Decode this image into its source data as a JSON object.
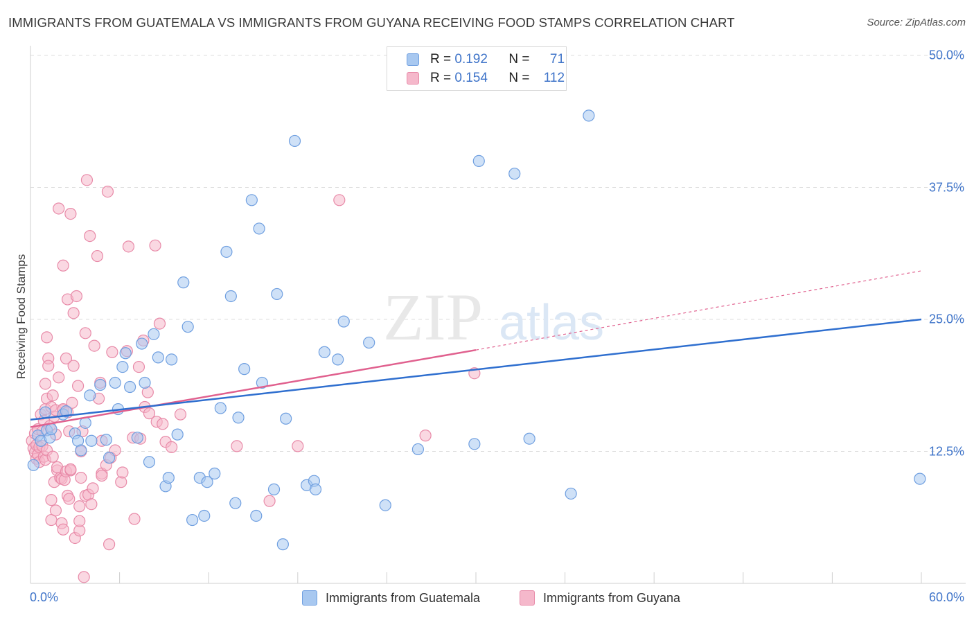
{
  "title": "IMMIGRANTS FROM GUATEMALA VS IMMIGRANTS FROM GUYANA RECEIVING FOOD STAMPS CORRELATION CHART",
  "source": "Source: ZipAtlas.com",
  "watermark": {
    "zip": "ZIP",
    "atlas": "atlas"
  },
  "legend": {
    "rows": [
      {
        "r_label": "R =",
        "r_value": "0.192",
        "n_label": "N =",
        "n_value": "71",
        "color": "#a8c8f0"
      },
      {
        "r_label": "R =",
        "r_value": "0.154",
        "n_label": "N =",
        "n_value": "112",
        "color": "#f5b8cb"
      }
    ]
  },
  "colors": {
    "guatemala_fill": "#a8c8f0",
    "guatemala_stroke": "#6f9fe0",
    "guatemala_line": "#2f6fcf",
    "guyana_fill": "#f5b8cb",
    "guyana_stroke": "#e88aa8",
    "guyana_line": "#e0608e",
    "tick_text": "#3f74c9",
    "grid": "#dcdcdc"
  },
  "chart_data": {
    "type": "scatter",
    "title": "IMMIGRANTS FROM GUATEMALA VS IMMIGRANTS FROM GUYANA RECEIVING FOOD STAMPS CORRELATION CHART",
    "xlabel": "",
    "ylabel": "Receiving Food Stamps",
    "xlim": [
      0,
      60
    ],
    "ylim": [
      0,
      50
    ],
    "x_tick_labels": [
      "0.0%",
      "60.0%"
    ],
    "y_ticks": [
      12.5,
      25.0,
      37.5,
      50.0
    ],
    "y_tick_labels": [
      "12.5%",
      "25.0%",
      "37.5%",
      "50.0%"
    ],
    "grid": "horizontal dashed",
    "legend_position": "top-center",
    "series": [
      {
        "name": "Immigrants from Guatemala",
        "r": 0.192,
        "n": 71,
        "trend": {
          "x": [
            0,
            60
          ],
          "y": [
            15.5,
            25.0
          ],
          "style": "solid"
        },
        "points": [
          [
            0.2,
            11.2
          ],
          [
            0.5,
            14.0
          ],
          [
            0.7,
            13.5
          ],
          [
            1.0,
            16.2
          ],
          [
            1.1,
            14.5
          ],
          [
            1.3,
            13.8
          ],
          [
            1.4,
            14.6
          ],
          [
            2.2,
            16.0
          ],
          [
            2.4,
            16.3
          ],
          [
            3.0,
            14.2
          ],
          [
            3.2,
            13.5
          ],
          [
            3.4,
            12.6
          ],
          [
            3.7,
            15.2
          ],
          [
            4.0,
            17.8
          ],
          [
            4.1,
            13.5
          ],
          [
            4.7,
            18.8
          ],
          [
            5.1,
            13.6
          ],
          [
            5.3,
            11.9
          ],
          [
            5.7,
            19.0
          ],
          [
            5.9,
            16.5
          ],
          [
            6.2,
            20.5
          ],
          [
            6.4,
            21.8
          ],
          [
            6.7,
            18.6
          ],
          [
            7.2,
            13.8
          ],
          [
            7.5,
            22.7
          ],
          [
            7.7,
            19.0
          ],
          [
            8.0,
            11.5
          ],
          [
            8.3,
            23.6
          ],
          [
            8.6,
            21.4
          ],
          [
            9.1,
            9.2
          ],
          [
            9.3,
            10.0
          ],
          [
            9.5,
            21.2
          ],
          [
            9.9,
            14.1
          ],
          [
            10.3,
            28.5
          ],
          [
            10.6,
            24.3
          ],
          [
            10.9,
            6.0
          ],
          [
            11.4,
            10.0
          ],
          [
            11.7,
            6.4
          ],
          [
            11.9,
            9.6
          ],
          [
            12.4,
            10.4
          ],
          [
            12.8,
            16.6
          ],
          [
            13.2,
            31.4
          ],
          [
            13.5,
            27.2
          ],
          [
            13.8,
            7.6
          ],
          [
            14.0,
            15.7
          ],
          [
            14.4,
            20.3
          ],
          [
            14.9,
            36.3
          ],
          [
            15.2,
            6.4
          ],
          [
            15.4,
            33.6
          ],
          [
            15.6,
            19.0
          ],
          [
            16.4,
            8.9
          ],
          [
            16.6,
            27.4
          ],
          [
            17.0,
            3.7
          ],
          [
            17.2,
            15.6
          ],
          [
            17.8,
            41.9
          ],
          [
            18.6,
            9.3
          ],
          [
            19.1,
            9.7
          ],
          [
            19.2,
            8.9
          ],
          [
            19.8,
            21.9
          ],
          [
            20.7,
            21.2
          ],
          [
            21.1,
            24.8
          ],
          [
            22.8,
            22.8
          ],
          [
            23.9,
            7.4
          ],
          [
            26.1,
            12.7
          ],
          [
            29.9,
            13.2
          ],
          [
            30.2,
            40.0
          ],
          [
            32.6,
            38.8
          ],
          [
            33.6,
            13.7
          ],
          [
            36.4,
            8.5
          ],
          [
            37.6,
            44.3
          ],
          [
            59.9,
            9.9
          ]
        ]
      },
      {
        "name": "Immigrants from Guyana",
        "r": 0.154,
        "n": 112,
        "trend": {
          "x": [
            0,
            30
          ],
          "y": [
            14.8,
            22.1
          ],
          "style": "solid",
          "dashed_extension": {
            "x": [
              30,
              60
            ],
            "y": [
              22.1,
              29.6
            ]
          }
        },
        "points": [
          [
            0.1,
            13.5
          ],
          [
            0.2,
            12.8
          ],
          [
            0.3,
            12.4
          ],
          [
            0.3,
            14.2
          ],
          [
            0.4,
            11.8
          ],
          [
            0.4,
            13.1
          ],
          [
            0.5,
            12.2
          ],
          [
            0.5,
            14.6
          ],
          [
            0.6,
            12.9
          ],
          [
            0.6,
            11.5
          ],
          [
            0.7,
            16.0
          ],
          [
            0.8,
            14.4
          ],
          [
            0.8,
            13.0
          ],
          [
            0.9,
            12.0
          ],
          [
            0.9,
            15.4
          ],
          [
            1.0,
            11.7
          ],
          [
            1.0,
            16.5
          ],
          [
            1.0,
            18.9
          ],
          [
            1.1,
            17.5
          ],
          [
            1.1,
            12.6
          ],
          [
            1.1,
            23.3
          ],
          [
            1.2,
            21.3
          ],
          [
            1.2,
            20.6
          ],
          [
            1.3,
            14.9
          ],
          [
            1.4,
            16.7
          ],
          [
            1.4,
            7.9
          ],
          [
            1.4,
            6.0
          ],
          [
            1.5,
            12.0
          ],
          [
            1.5,
            17.8
          ],
          [
            1.6,
            15.8
          ],
          [
            1.6,
            9.6
          ],
          [
            1.7,
            16.4
          ],
          [
            1.7,
            14.1
          ],
          [
            1.7,
            6.9
          ],
          [
            1.8,
            10.7
          ],
          [
            1.8,
            11.0
          ],
          [
            1.9,
            19.5
          ],
          [
            1.9,
            35.5
          ],
          [
            2.0,
            10.0
          ],
          [
            2.1,
            5.7
          ],
          [
            2.1,
            9.9
          ],
          [
            2.2,
            16.4
          ],
          [
            2.2,
            5.1
          ],
          [
            2.2,
            30.1
          ],
          [
            2.2,
            16.5
          ],
          [
            2.3,
            9.8
          ],
          [
            2.4,
            21.3
          ],
          [
            2.4,
            10.6
          ],
          [
            2.5,
            8.3
          ],
          [
            2.5,
            26.9
          ],
          [
            2.5,
            16.2
          ],
          [
            2.6,
            8.0
          ],
          [
            2.6,
            14.4
          ],
          [
            2.7,
            10.7
          ],
          [
            2.7,
            35.0
          ],
          [
            2.7,
            10.8
          ],
          [
            2.8,
            17.1
          ],
          [
            2.9,
            25.6
          ],
          [
            2.9,
            20.6
          ],
          [
            3.0,
            4.3
          ],
          [
            3.1,
            27.2
          ],
          [
            3.2,
            18.7
          ],
          [
            3.3,
            5.0
          ],
          [
            3.3,
            7.3
          ],
          [
            3.3,
            5.9
          ],
          [
            3.4,
            10.0
          ],
          [
            3.4,
            12.5
          ],
          [
            3.5,
            14.4
          ],
          [
            3.6,
            0.6
          ],
          [
            3.7,
            8.3
          ],
          [
            3.7,
            23.7
          ],
          [
            3.8,
            38.2
          ],
          [
            3.9,
            8.4
          ],
          [
            4.0,
            32.9
          ],
          [
            4.1,
            7.5
          ],
          [
            4.2,
            9.0
          ],
          [
            4.3,
            22.5
          ],
          [
            4.5,
            31.0
          ],
          [
            4.6,
            17.5
          ],
          [
            4.7,
            19.0
          ],
          [
            4.8,
            10.4
          ],
          [
            4.8,
            10.2
          ],
          [
            4.8,
            13.5
          ],
          [
            5.1,
            11.2
          ],
          [
            5.2,
            37.1
          ],
          [
            5.3,
            3.7
          ],
          [
            5.4,
            11.9
          ],
          [
            5.5,
            21.9
          ],
          [
            5.7,
            12.6
          ],
          [
            6.1,
            9.6
          ],
          [
            6.2,
            10.5
          ],
          [
            6.5,
            22.0
          ],
          [
            6.6,
            31.9
          ],
          [
            6.9,
            13.8
          ],
          [
            7.0,
            6.1
          ],
          [
            7.3,
            20.5
          ],
          [
            7.4,
            13.7
          ],
          [
            7.6,
            23.0
          ],
          [
            7.7,
            16.7
          ],
          [
            7.9,
            18.1
          ],
          [
            8.0,
            16.1
          ],
          [
            8.4,
            32.0
          ],
          [
            8.5,
            15.3
          ],
          [
            8.7,
            24.6
          ],
          [
            8.9,
            15.1
          ],
          [
            9.1,
            13.4
          ],
          [
            9.5,
            12.9
          ],
          [
            10.1,
            16.0
          ],
          [
            13.9,
            13.0
          ],
          [
            16.1,
            7.8
          ],
          [
            18.0,
            13.0
          ],
          [
            20.8,
            36.3
          ],
          [
            26.6,
            14.0
          ],
          [
            29.9,
            19.9
          ]
        ]
      }
    ]
  },
  "bottom_legend": [
    "Immigrants from Guatemala",
    "Immigrants from Guyana"
  ]
}
